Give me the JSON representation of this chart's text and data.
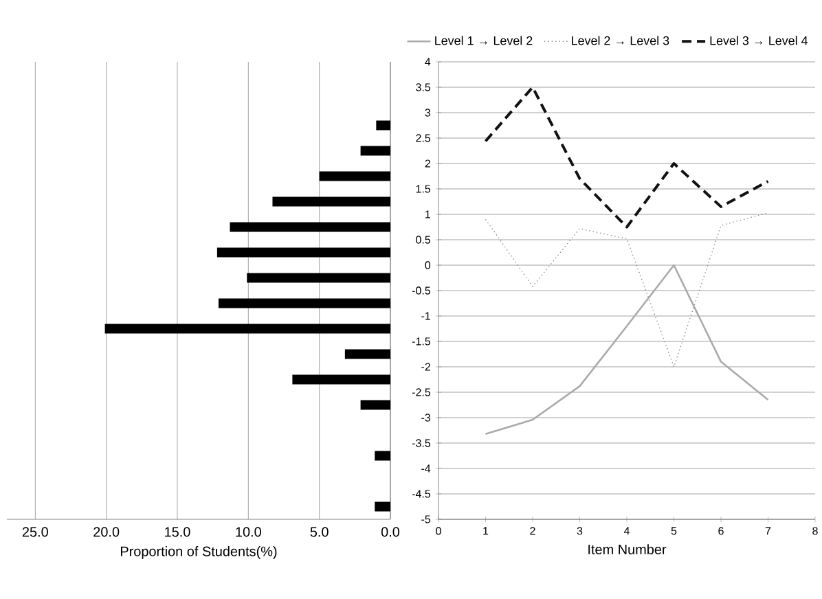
{
  "chart_data": [
    {
      "type": "bar",
      "orientation": "horizontal",
      "categories": [
        null,
        null,
        null,
        null,
        null,
        null,
        null,
        null,
        null,
        null,
        null,
        null,
        null,
        null,
        null,
        null,
        null,
        null
      ],
      "values": [
        null,
        null,
        1.0,
        2.1,
        5.0,
        8.3,
        11.3,
        12.2,
        10.1,
        12.1,
        20.1,
        3.2,
        6.9,
        2.1,
        null,
        1.1,
        null,
        1.1
      ],
      "color": "#000000",
      "xlim": [
        27,
        0
      ],
      "xticks": [
        {
          "value": 25,
          "label": "25.0"
        },
        {
          "value": 20,
          "label": "20.0"
        },
        {
          "value": 15,
          "label": "15.0"
        },
        {
          "value": 10,
          "label": "10.0"
        },
        {
          "value": 5,
          "label": "5.0"
        },
        {
          "value": 0,
          "label": "0.0"
        }
      ],
      "xlabel": "Proportion of Students(%)",
      "grid": "x",
      "tick_labels": "x"
    },
    {
      "type": "line",
      "x": [
        1,
        2,
        3,
        4,
        5,
        6,
        7
      ],
      "xlim": [
        0,
        8
      ],
      "xticks": [
        0,
        1,
        2,
        3,
        4,
        5,
        6,
        7,
        8
      ],
      "ylim": [
        -5,
        4
      ],
      "yticks": [
        -5,
        -4.5,
        -4,
        -3.5,
        -3,
        -2.5,
        -2,
        -1.5,
        -1,
        -0.5,
        0,
        0.5,
        1,
        1.5,
        2,
        2.5,
        3,
        3.5,
        4
      ],
      "xlabel": "Item Number",
      "grid": "y",
      "legend": "top",
      "marker": "none",
      "series": [
        {
          "name": "Level 1 → Level 2",
          "color": "#aaaaaa",
          "line_style": "solid",
          "values": [
            -3.32,
            -3.04,
            -2.38,
            -1.2,
            0,
            -1.9,
            -2.65
          ]
        },
        {
          "name": "Level 2 → Level 3",
          "color": "#888888",
          "line_style": "dotted",
          "values": [
            0.9,
            -0.42,
            0.72,
            0.52,
            -2.0,
            0.78,
            1.03
          ]
        },
        {
          "name": "Level 3 → Level 4",
          "color": "#111111",
          "line_style": "dashed",
          "values": [
            2.44,
            3.5,
            1.7,
            0.75,
            2.0,
            1.15,
            1.65
          ]
        }
      ]
    }
  ]
}
